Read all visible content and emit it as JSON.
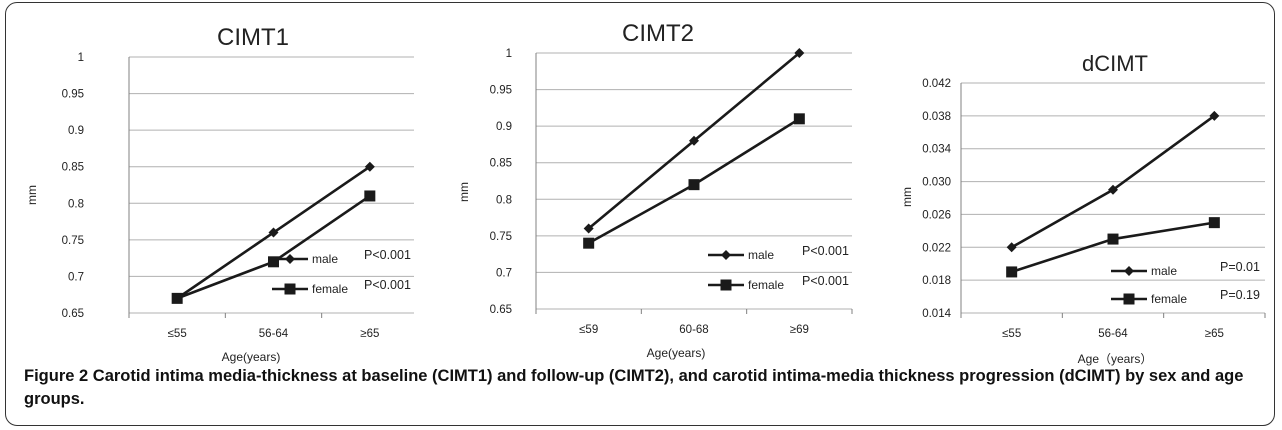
{
  "figure": {
    "label": "Figure 2",
    "caption": "Carotid intima media-thickness at baseline (CIMT1) and follow-up (CIMT2), and carotid intima-media thickness progression (dCIMT) by sex and age groups."
  },
  "colors": {
    "line": "#1a1a1a",
    "grid": "#b0b0b0",
    "axis": "#808080"
  },
  "chart_data": [
    {
      "type": "line",
      "title": "CIMT1",
      "xlabel": "Age(years)",
      "ylabel": "mm",
      "categories": [
        "≤55",
        "56-64",
        "≥65"
      ],
      "ylim": [
        0.65,
        1
      ],
      "yticks": [
        "1",
        "0.95",
        "0.9",
        "0.85",
        "0.8",
        "0.75",
        "0.7",
        "0.65"
      ],
      "ytick_values": [
        1,
        0.95,
        0.9,
        0.85,
        0.8,
        0.75,
        0.7,
        0.65
      ],
      "grid": true,
      "series": [
        {
          "name": "male",
          "marker": "diamond",
          "values": [
            0.67,
            0.76,
            0.85
          ],
          "pvalue": "P<0.001"
        },
        {
          "name": "female",
          "marker": "square",
          "values": [
            0.67,
            0.72,
            0.81
          ],
          "pvalue": "P<0.001"
        }
      ],
      "legend_position": "bottom-right"
    },
    {
      "type": "line",
      "title": "CIMT2",
      "xlabel": "Age(years)",
      "ylabel": "mm",
      "categories": [
        "≤59",
        "60-68",
        "≥69"
      ],
      "ylim": [
        0.65,
        1
      ],
      "yticks": [
        "1",
        "0.95",
        "0.9",
        "0.85",
        "0.8",
        "0.75",
        "0.7",
        "0.65"
      ],
      "ytick_values": [
        1,
        0.95,
        0.9,
        0.85,
        0.8,
        0.75,
        0.7,
        0.65
      ],
      "grid": true,
      "series": [
        {
          "name": "male",
          "marker": "diamond",
          "values": [
            0.76,
            0.88,
            1.0
          ],
          "pvalue": "P<0.001"
        },
        {
          "name": "female",
          "marker": "square",
          "values": [
            0.74,
            0.82,
            0.91
          ],
          "pvalue": "P<0.001"
        }
      ],
      "legend_position": "bottom-right"
    },
    {
      "type": "line",
      "title": "dCIMT",
      "xlabel": "Age（years）",
      "ylabel": "mm",
      "categories": [
        "≤55",
        "56-64",
        "≥65"
      ],
      "ylim": [
        0.014,
        0.042
      ],
      "yticks": [
        "0.042",
        "0.038",
        "0.034",
        "0.030",
        "0.026",
        "0.022",
        "0.018",
        "0.014"
      ],
      "ytick_values": [
        0.042,
        0.038,
        0.034,
        0.03,
        0.026,
        0.022,
        0.018,
        0.014
      ],
      "grid": true,
      "series": [
        {
          "name": "male",
          "marker": "diamond",
          "values": [
            0.022,
            0.029,
            0.038
          ],
          "pvalue": "P=0.01"
        },
        {
          "name": "female",
          "marker": "square",
          "values": [
            0.019,
            0.023,
            0.025
          ],
          "pvalue": "P=0.19"
        }
      ],
      "legend_position": "bottom-right"
    }
  ]
}
